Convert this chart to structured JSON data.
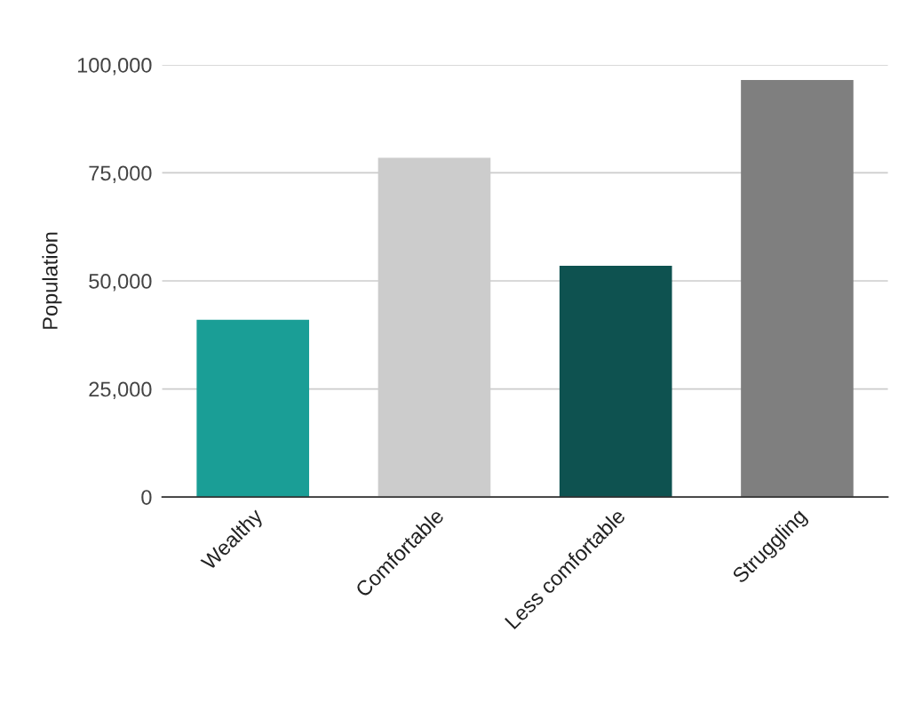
{
  "chart_data": {
    "type": "bar",
    "ylabel": "Population",
    "categories": [
      "Wealthy",
      "Comfortable",
      "Less comfortable",
      "Struggling"
    ],
    "values": [
      41000,
      78500,
      53500,
      96500
    ],
    "colors": [
      "#1a9e96",
      "#cccccc",
      "#0e5250",
      "#7f7f7f"
    ],
    "ylim": [
      0,
      100000
    ],
    "yticks": [
      {
        "value": 0,
        "label": "0"
      },
      {
        "value": 25000,
        "label": "25,000"
      },
      {
        "value": 50000,
        "label": "50,000"
      },
      {
        "value": 75000,
        "label": "75,000"
      },
      {
        "value": 100000,
        "label": "100,000"
      }
    ],
    "grid": "y",
    "legend": false
  }
}
